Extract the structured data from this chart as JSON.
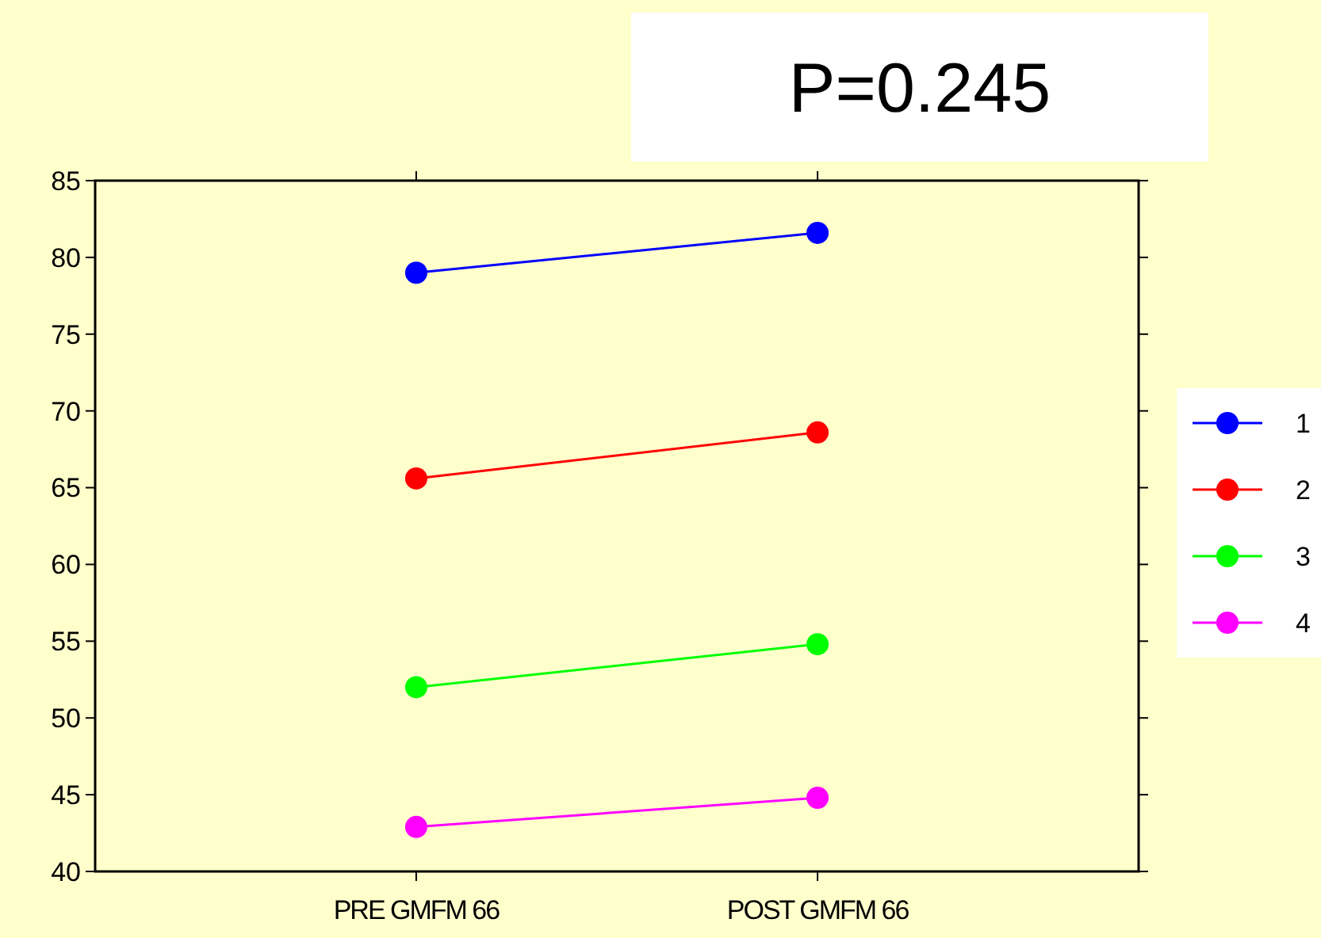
{
  "chart_data": {
    "type": "line",
    "categories": [
      "PRE GMFM 66",
      "POST GMFM 66"
    ],
    "series": [
      {
        "name": "1",
        "color": "#0000ff",
        "values": [
          79,
          81.6
        ]
      },
      {
        "name": "2",
        "color": "#ff0000",
        "values": [
          65.6,
          68.6
        ]
      },
      {
        "name": "3",
        "color": "#00ff00",
        "values": [
          52,
          54.8
        ]
      },
      {
        "name": "4",
        "color": "#ff00ff",
        "values": [
          42.9,
          44.8
        ]
      }
    ],
    "ylim": [
      40,
      85
    ],
    "yticks": [
      40,
      45,
      50,
      55,
      60,
      65,
      70,
      75,
      80,
      85
    ],
    "marker": "circle",
    "line_style": "solid",
    "legend": "right",
    "grid": false,
    "annotations": [
      "P=0.245"
    ]
  }
}
